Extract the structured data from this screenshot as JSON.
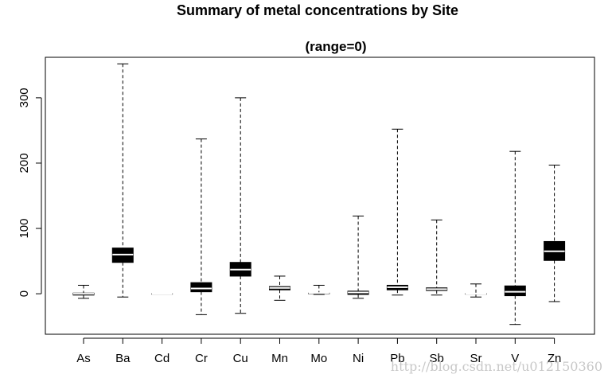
{
  "chart_data": {
    "type": "boxplot",
    "title": "Summary of metal concentrations by Site",
    "subtitle": "(range=0)",
    "xlabel": "",
    "ylabel": "",
    "ylim": [
      -62,
      362
    ],
    "yticks": [
      0,
      100,
      200,
      300
    ],
    "categories": [
      "As",
      "Ba",
      "Cd",
      "Cr",
      "Cu",
      "Mn",
      "Mo",
      "Ni",
      "Pb",
      "Sb",
      "Sr",
      "V",
      "Zn"
    ],
    "boxes": [
      {
        "name": "As",
        "min": -7,
        "q1": -2,
        "median": 0,
        "q3": 1,
        "max": 13
      },
      {
        "name": "Ba",
        "min": -5,
        "q1": 48,
        "median": 60,
        "q3": 70,
        "max": 352
      },
      {
        "name": "Cd",
        "min": 0,
        "q1": 0,
        "median": 0,
        "q3": 0,
        "max": 0
      },
      {
        "name": "Cr",
        "min": -32,
        "q1": 3,
        "median": 8,
        "q3": 17,
        "max": 237
      },
      {
        "name": "Cu",
        "min": -30,
        "q1": 27,
        "median": 37,
        "q3": 48,
        "max": 300
      },
      {
        "name": "Mn",
        "min": -10,
        "q1": 6,
        "median": 9,
        "q3": 11,
        "max": 27
      },
      {
        "name": "Mo",
        "min": -1,
        "q1": 0,
        "median": 1,
        "q3": 1,
        "max": 13
      },
      {
        "name": "Ni",
        "min": -7,
        "q1": -1,
        "median": 2,
        "q3": 4,
        "max": 119
      },
      {
        "name": "Pb",
        "min": -2,
        "q1": 6,
        "median": 10,
        "q3": 13,
        "max": 252
      },
      {
        "name": "Sb",
        "min": -2,
        "q1": 5,
        "median": 7,
        "q3": 9,
        "max": 113
      },
      {
        "name": "Sr",
        "min": -5,
        "q1": 0,
        "median": 0,
        "q3": 0,
        "max": 15
      },
      {
        "name": "V",
        "min": -47,
        "q1": -3,
        "median": 3,
        "q3": 12,
        "max": 218
      },
      {
        "name": "Zn",
        "min": -12,
        "q1": 51,
        "median": 65,
        "q3": 80,
        "max": 197
      }
    ]
  },
  "watermark": "http://blog.csdn.net/u012150360"
}
